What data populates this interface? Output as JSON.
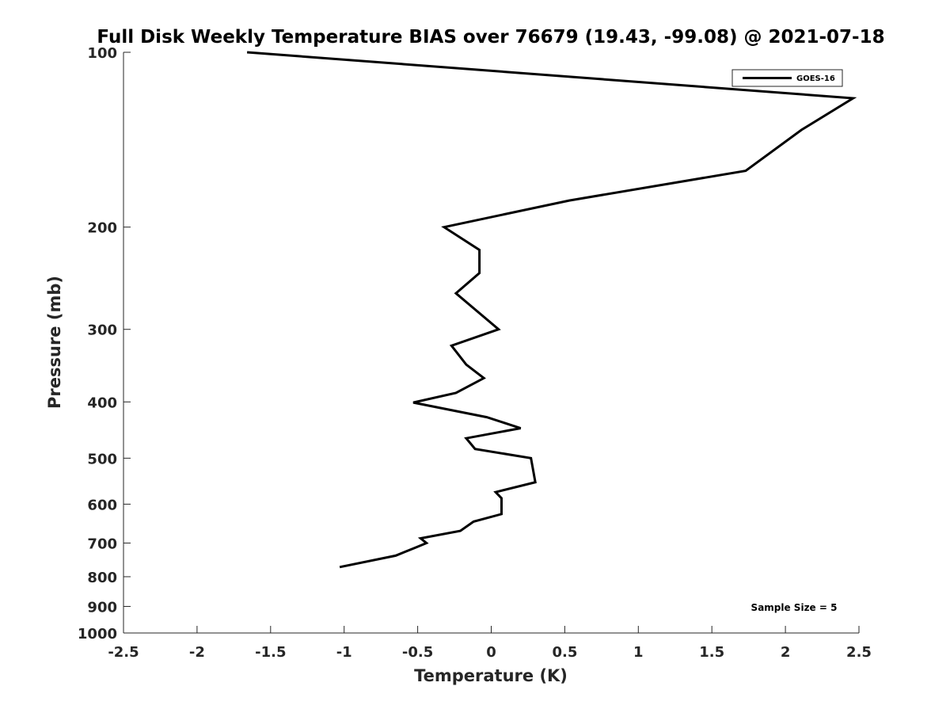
{
  "chart_data": {
    "type": "line",
    "title": "Full Disk Weekly Temperature BIAS over 76679 (19.43, -99.08) @ 2021-07-18",
    "xlabel": "Temperature (K)",
    "ylabel": "Pressure (mb)",
    "xlim": [
      -2.5,
      2.5
    ],
    "ylim": [
      100,
      1000
    ],
    "y_scale": "log",
    "y_reversed": true,
    "grid": false,
    "legend_position": "top-right",
    "x_ticks": [
      "-2.5",
      "-2",
      "-1.5",
      "-1",
      "-0.5",
      "0",
      "0.5",
      "1",
      "1.5",
      "2",
      "2.5"
    ],
    "y_ticks": [
      "100",
      "200",
      "300",
      "400",
      "500",
      "600",
      "700",
      "800",
      "900",
      "1000"
    ],
    "series": [
      {
        "name": "GOES-16",
        "color": "#000000",
        "points": [
          {
            "x": -1.66,
            "y": 100
          },
          {
            "x": 2.46,
            "y": 120
          },
          {
            "x": 2.11,
            "y": 136
          },
          {
            "x": 1.73,
            "y": 160
          },
          {
            "x": 0.53,
            "y": 180
          },
          {
            "x": -0.32,
            "y": 200
          },
          {
            "x": -0.08,
            "y": 219
          },
          {
            "x": -0.08,
            "y": 240
          },
          {
            "x": -0.24,
            "y": 260
          },
          {
            "x": 0.05,
            "y": 300
          },
          {
            "x": -0.27,
            "y": 320
          },
          {
            "x": -0.17,
            "y": 345
          },
          {
            "x": -0.05,
            "y": 364
          },
          {
            "x": -0.24,
            "y": 386
          },
          {
            "x": -0.53,
            "y": 401
          },
          {
            "x": -0.03,
            "y": 425
          },
          {
            "x": 0.2,
            "y": 444
          },
          {
            "x": -0.17,
            "y": 462
          },
          {
            "x": -0.11,
            "y": 482
          },
          {
            "x": 0.27,
            "y": 500
          },
          {
            "x": 0.3,
            "y": 550
          },
          {
            "x": 0.03,
            "y": 572
          },
          {
            "x": 0.07,
            "y": 586
          },
          {
            "x": 0.07,
            "y": 624
          },
          {
            "x": -0.12,
            "y": 643
          },
          {
            "x": -0.21,
            "y": 667
          },
          {
            "x": -0.48,
            "y": 687
          },
          {
            "x": -0.44,
            "y": 700
          },
          {
            "x": -0.51,
            "y": 712
          },
          {
            "x": -0.65,
            "y": 736
          },
          {
            "x": -1.03,
            "y": 770
          }
        ]
      }
    ],
    "legend": [
      "GOES-16"
    ],
    "annotation": "Sample Size = 5"
  }
}
